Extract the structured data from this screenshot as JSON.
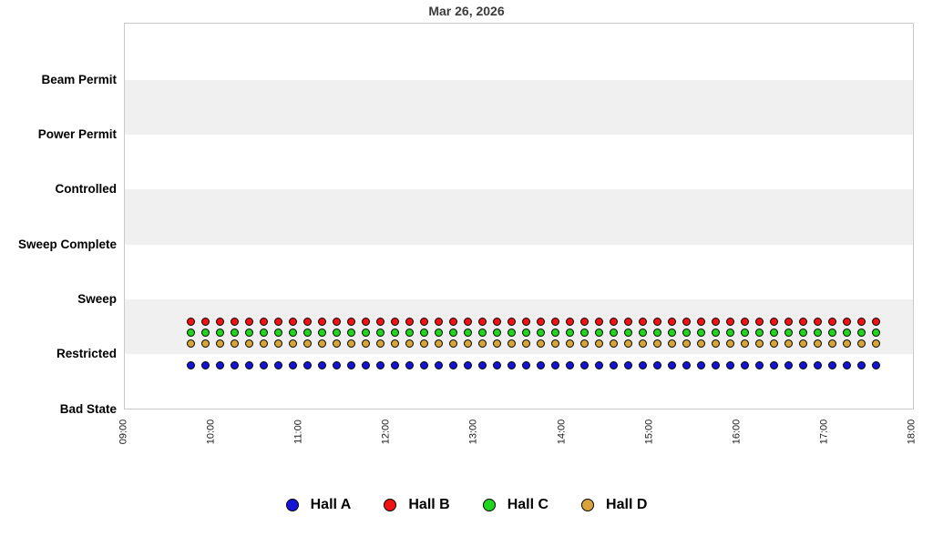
{
  "chart_data": {
    "type": "scatter",
    "title": "Mar 26, 2026",
    "x_axis": {
      "tick_labels": [
        "09:00",
        "10:00",
        "11:00",
        "12:00",
        "13:00",
        "14:00",
        "15:00",
        "16:00",
        "17:00",
        "18:00"
      ],
      "tick_rotation_deg": -90,
      "range": [
        "09:00",
        "18:00"
      ]
    },
    "y_axis": {
      "categories_bottom_to_top": [
        "Bad State",
        "Restricted",
        "Sweep",
        "Sweep Complete",
        "Controlled",
        "Power Permit",
        "Beam Permit"
      ]
    },
    "grid": "alternating horizontal gray bands between category rows",
    "band_color": "#f0f0f0",
    "border_color": "#c9c9c9",
    "legend_position": "bottom",
    "sample_times": [
      "09:45",
      "09:55",
      "10:05",
      "10:15",
      "10:25",
      "10:35",
      "10:45",
      "10:55",
      "11:05",
      "11:15",
      "11:25",
      "11:35",
      "11:45",
      "11:55",
      "12:05",
      "12:15",
      "12:25",
      "12:35",
      "12:45",
      "12:55",
      "13:05",
      "13:15",
      "13:25",
      "13:35",
      "13:45",
      "13:55",
      "14:05",
      "14:15",
      "14:25",
      "14:35",
      "14:45",
      "14:55",
      "15:05",
      "15:15",
      "15:25",
      "15:35",
      "15:45",
      "15:55",
      "16:05",
      "16:15",
      "16:25",
      "16:35",
      "16:45",
      "16:55",
      "17:05",
      "17:15",
      "17:25",
      "17:35"
    ],
    "n_points_per_series": 48,
    "series": [
      {
        "name": "Hall A",
        "color": "#1414d6",
        "marker": "circle",
        "state_all_samples": "Restricted"
      },
      {
        "name": "Hall B",
        "color": "#ee1212",
        "marker": "circle",
        "state_all_samples": "Restricted"
      },
      {
        "name": "Hall C",
        "color": "#1dd61d",
        "marker": "circle",
        "state_all_samples": "Restricted"
      },
      {
        "name": "Hall D",
        "color": "#d8a43a",
        "marker": "circle",
        "state_all_samples": "Restricted"
      }
    ]
  }
}
